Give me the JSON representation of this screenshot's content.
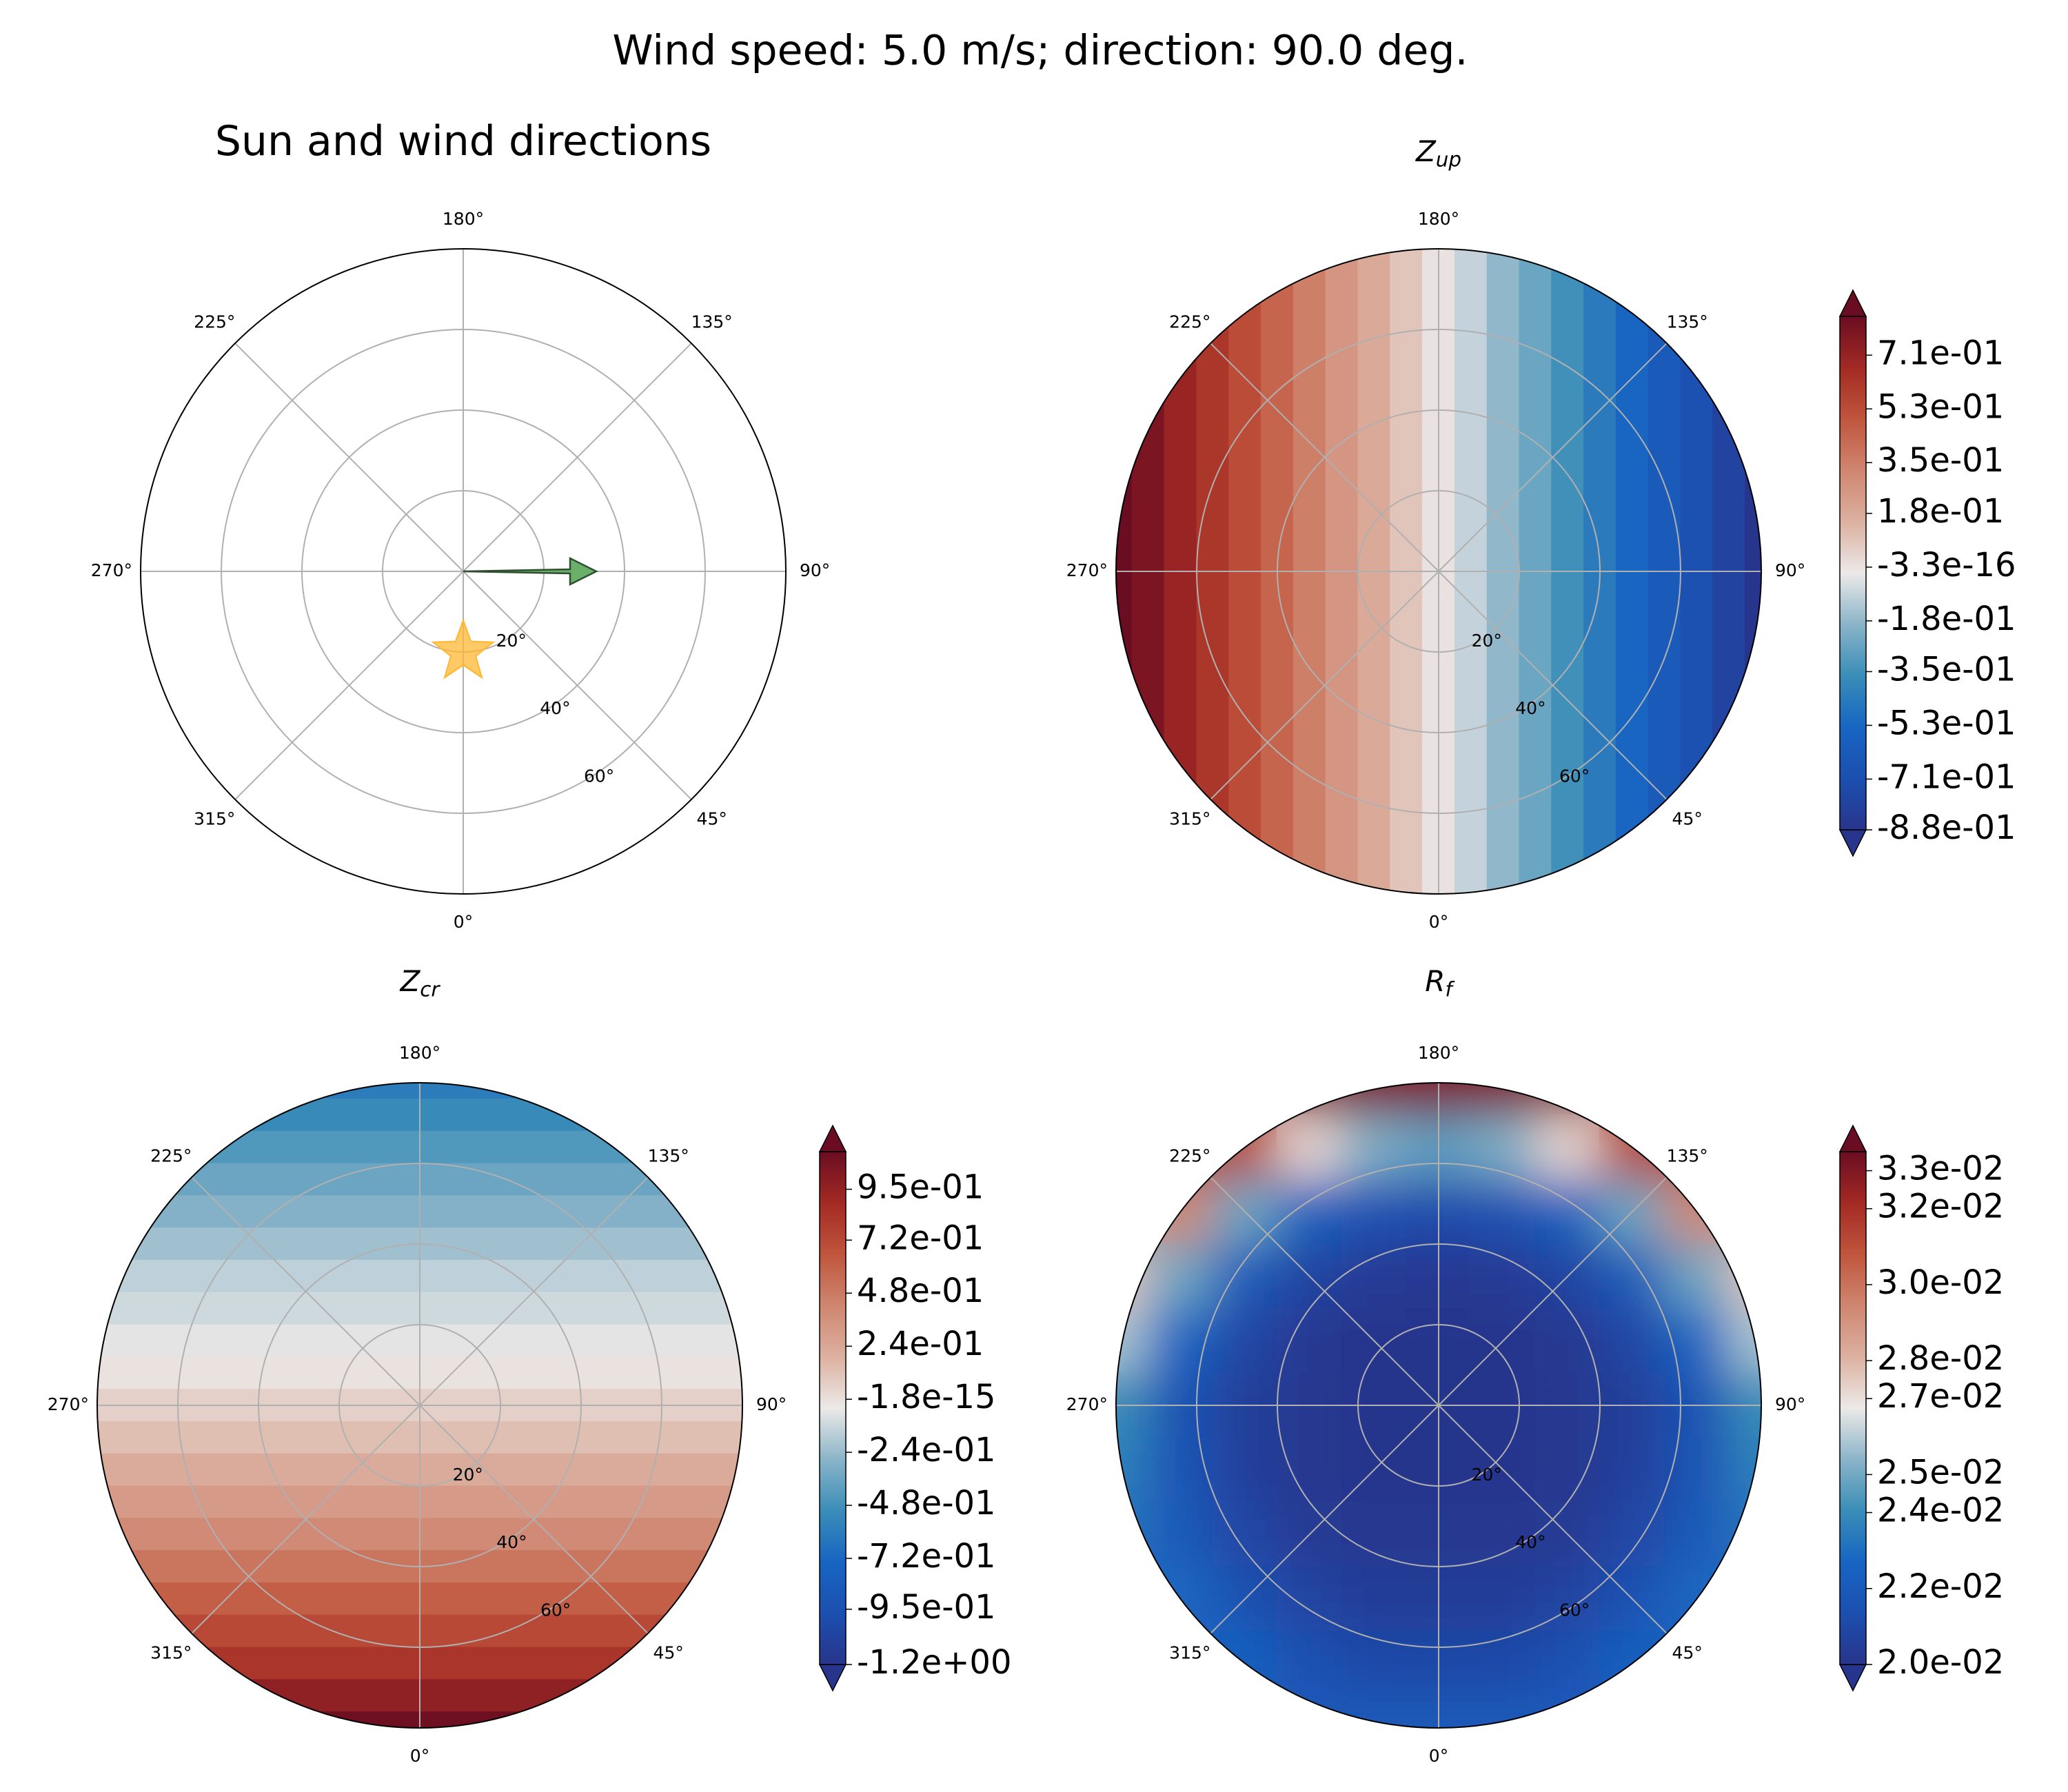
{
  "title": "Wind speed: 5.0 m/s; direction: 90.0 deg.",
  "chart_data": [
    {
      "type": "polar",
      "title": "Sun and wind directions",
      "rlim": [
        0,
        80
      ],
      "grid": true,
      "theta_ticks": [
        {
          "value": 0,
          "label": "0°"
        },
        {
          "value": 45,
          "label": "45°"
        },
        {
          "value": 90,
          "label": "90°"
        },
        {
          "value": 135,
          "label": "135°"
        },
        {
          "value": 180,
          "label": "180°"
        },
        {
          "value": 225,
          "label": "225°"
        },
        {
          "value": 270,
          "label": "270°"
        },
        {
          "value": 315,
          "label": "315°"
        }
      ],
      "rticks": [
        {
          "value": 20,
          "label": "20°"
        },
        {
          "value": 40,
          "label": "40°"
        },
        {
          "value": 60,
          "label": "60°"
        }
      ],
      "sun": {
        "theta": 0,
        "r": 20,
        "color": "#ffb732"
      },
      "wind": {
        "theta": 90,
        "r": 33,
        "color": "#6ab06a"
      }
    },
    {
      "type": "contour",
      "title": "Z",
      "title_subscript": "up",
      "rlim": [
        0,
        80
      ],
      "grid": true,
      "colormap": "balance",
      "theta_ticks": [
        {
          "value": 0,
          "label": "0°"
        },
        {
          "value": 45,
          "label": "45°"
        },
        {
          "value": 90,
          "label": "90°"
        },
        {
          "value": 135,
          "label": "135°"
        },
        {
          "value": 180,
          "label": "180°"
        },
        {
          "value": 225,
          "label": "225°"
        },
        {
          "value": 270,
          "label": "270°"
        },
        {
          "value": 315,
          "label": "315°"
        }
      ],
      "rticks": [
        {
          "value": 20,
          "label": "20°"
        },
        {
          "value": 40,
          "label": "40°"
        },
        {
          "value": 60,
          "label": "60°"
        }
      ],
      "field": {
        "x": [
          -80,
          -72,
          -64,
          -56,
          -48,
          -40,
          -32,
          -24,
          -16,
          -8,
          0,
          8,
          16,
          24,
          32,
          40,
          48,
          56,
          64,
          72,
          80
        ],
        "values": [
          0.88,
          0.79,
          0.7,
          0.62,
          0.53,
          0.44,
          0.35,
          0.26,
          0.18,
          0.09,
          0,
          -0.09,
          -0.18,
          -0.26,
          -0.35,
          -0.44,
          -0.53,
          -0.62,
          -0.7,
          -0.79,
          -0.88
        ]
      },
      "colorbar": {
        "clim": [
          -0.88,
          0.84
        ],
        "ticks": [
          {
            "value": -0.88,
            "label": "-8.8e-01"
          },
          {
            "value": -0.71,
            "label": "-7.1e-01"
          },
          {
            "value": -0.53,
            "label": "-5.3e-01"
          },
          {
            "value": -0.35,
            "label": "-3.5e-01"
          },
          {
            "value": -0.18,
            "label": "-1.8e-01"
          },
          {
            "value": -3.3e-16,
            "label": "-3.3e-16"
          },
          {
            "value": 0.18,
            "label": "1.8e-01"
          },
          {
            "value": 0.35,
            "label": "3.5e-01"
          },
          {
            "value": 0.53,
            "label": "5.3e-01"
          },
          {
            "value": 0.71,
            "label": "7.1e-01"
          }
        ]
      }
    },
    {
      "type": "contour",
      "title": "Z",
      "title_subscript": "cr",
      "rlim": [
        0,
        80
      ],
      "grid": true,
      "colormap": "balance",
      "theta_ticks": [
        {
          "value": 0,
          "label": "0°"
        },
        {
          "value": 45,
          "label": "45°"
        },
        {
          "value": 90,
          "label": "90°"
        },
        {
          "value": 135,
          "label": "135°"
        },
        {
          "value": 180,
          "label": "180°"
        },
        {
          "value": 225,
          "label": "225°"
        },
        {
          "value": 270,
          "label": "270°"
        },
        {
          "value": 315,
          "label": "315°"
        }
      ],
      "rticks": [
        {
          "value": 20,
          "label": "20°"
        },
        {
          "value": 40,
          "label": "40°"
        },
        {
          "value": 60,
          "label": "60°"
        }
      ],
      "field": {
        "y": [
          80,
          72,
          64,
          56,
          48,
          40,
          32,
          24,
          16,
          8,
          0,
          -8,
          -16,
          -24,
          -32,
          -40,
          -48,
          -56,
          -64,
          -72,
          -80
        ],
        "values": [
          -0.6,
          -0.52,
          -0.44,
          -0.36,
          -0.29,
          -0.22,
          -0.15,
          -0.11,
          -0.06,
          -0.01,
          0.06,
          0.13,
          0.22,
          0.31,
          0.4,
          0.5,
          0.61,
          0.72,
          0.83,
          0.97,
          1.1
        ]
      },
      "colorbar": {
        "clim": [
          -1.2,
          1.12
        ],
        "ticks": [
          {
            "value": -1.2,
            "label": "-1.2e+00"
          },
          {
            "value": -0.95,
            "label": "-9.5e-01"
          },
          {
            "value": -0.72,
            "label": "-7.2e-01"
          },
          {
            "value": -0.48,
            "label": "-4.8e-01"
          },
          {
            "value": -0.24,
            "label": "-2.4e-01"
          },
          {
            "value": -1.8e-15,
            "label": "-1.8e-15"
          },
          {
            "value": 0.24,
            "label": "2.4e-01"
          },
          {
            "value": 0.48,
            "label": "4.8e-01"
          },
          {
            "value": 0.72,
            "label": "7.2e-01"
          },
          {
            "value": 0.95,
            "label": "9.5e-01"
          }
        ]
      }
    },
    {
      "type": "contour",
      "title": "R",
      "title_subscript": "f",
      "rlim": [
        0,
        80
      ],
      "grid": true,
      "colormap": "balance",
      "theta_ticks": [
        {
          "value": 0,
          "label": "0°"
        },
        {
          "value": 45,
          "label": "45°"
        },
        {
          "value": 90,
          "label": "90°"
        },
        {
          "value": 135,
          "label": "135°"
        },
        {
          "value": 180,
          "label": "180°"
        },
        {
          "value": 225,
          "label": "225°"
        },
        {
          "value": 270,
          "label": "270°"
        },
        {
          "value": 315,
          "label": "315°"
        }
      ],
      "rticks": [
        {
          "value": 20,
          "label": "20°"
        },
        {
          "value": 40,
          "label": "40°"
        },
        {
          "value": 60,
          "label": "60°"
        }
      ],
      "field": {
        "x": [
          -80,
          -64,
          -48,
          -32,
          -16,
          0,
          16,
          32,
          48,
          64,
          80
        ],
        "y": [
          80,
          64,
          48,
          32,
          16,
          0,
          -16,
          -32,
          -48,
          -64,
          -80
        ],
        "values": [
          [
            null,
            null,
            null,
            0.033,
            0.033,
            0.033,
            0.033,
            0.033,
            null,
            null,
            null
          ],
          [
            null,
            0.0312,
            0.0312,
            0.0272,
            0.0252,
            0.0246,
            0.0252,
            0.0272,
            0.0312,
            0.0312,
            null
          ],
          [
            null,
            0.0294,
            0.0249,
            0.0225,
            0.0215,
            0.0212,
            0.0215,
            0.0225,
            0.0249,
            0.0294,
            null
          ],
          [
            0.0276,
            0.0249,
            0.0221,
            0.0208,
            0.0203,
            0.0202,
            0.0203,
            0.0208,
            0.0221,
            0.0249,
            0.0276
          ],
          [
            0.0258,
            0.0227,
            0.0209,
            0.0202,
            0.02,
            0.02,
            0.02,
            0.0202,
            0.0209,
            0.0227,
            0.0258
          ],
          [
            0.024,
            0.0216,
            0.0205,
            0.0201,
            0.02,
            0.02,
            0.02,
            0.0201,
            0.0205,
            0.0216,
            0.024
          ],
          [
            0.0236,
            0.0217,
            0.0206,
            0.0201,
            0.02,
            0.02,
            0.02,
            0.0201,
            0.0206,
            0.0217,
            0.0236
          ],
          [
            0.0232,
            0.022,
            0.0209,
            0.0203,
            0.0201,
            0.0201,
            0.0201,
            0.0203,
            0.0209,
            0.022,
            0.0232
          ],
          [
            null,
            0.0228,
            0.0215,
            0.0208,
            0.0204,
            0.0204,
            0.0204,
            0.0208,
            0.0215,
            0.0228,
            null
          ],
          [
            null,
            0.0224,
            0.0224,
            0.0215,
            0.0211,
            0.021,
            0.0211,
            0.0215,
            0.0224,
            0.0224,
            null
          ],
          [
            null,
            null,
            null,
            0.022,
            0.022,
            0.022,
            0.022,
            0.022,
            null,
            null,
            null
          ]
        ]
      },
      "colorbar": {
        "clim": [
          0.02,
          0.0335
        ],
        "ticks": [
          {
            "value": 0.02,
            "label": "2.0e-02"
          },
          {
            "value": 0.022,
            "label": "2.2e-02"
          },
          {
            "value": 0.024,
            "label": "2.4e-02"
          },
          {
            "value": 0.025,
            "label": "2.5e-02"
          },
          {
            "value": 0.027,
            "label": "2.7e-02"
          },
          {
            "value": 0.028,
            "label": "2.8e-02"
          },
          {
            "value": 0.03,
            "label": "3.0e-02"
          },
          {
            "value": 0.032,
            "label": "3.2e-02"
          },
          {
            "value": 0.033,
            "label": "3.3e-02"
          }
        ]
      }
    }
  ]
}
